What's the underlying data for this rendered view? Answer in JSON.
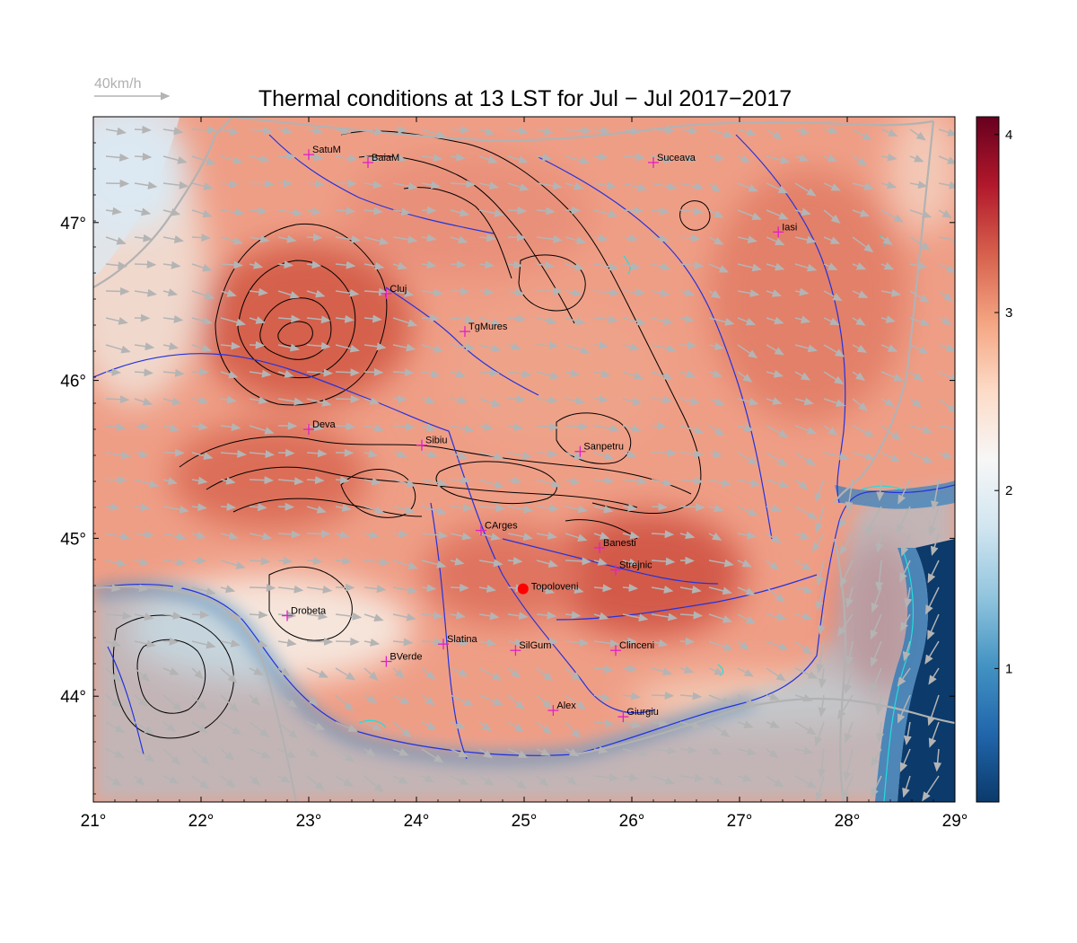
{
  "title": "Thermal conditions at 13 LST for Jul − Jul  2017−2017",
  "wind_scale": {
    "label": "40km/h"
  },
  "axes": {
    "lon_range": [
      21,
      29
    ],
    "lat_range": [
      43.33,
      47.67
    ],
    "lon_ticks": [
      {
        "value": 21,
        "label": "21°"
      },
      {
        "value": 22,
        "label": "22°"
      },
      {
        "value": 23,
        "label": "23°"
      },
      {
        "value": 24,
        "label": "24°"
      },
      {
        "value": 25,
        "label": "25°"
      },
      {
        "value": 26,
        "label": "26°"
      },
      {
        "value": 27,
        "label": "27°"
      },
      {
        "value": 28,
        "label": "28°"
      },
      {
        "value": 29,
        "label": "29°"
      }
    ],
    "lat_ticks": [
      {
        "value": 44,
        "label": "44°"
      },
      {
        "value": 45,
        "label": "45°"
      },
      {
        "value": 46,
        "label": "46°"
      },
      {
        "value": 47,
        "label": "47°"
      }
    ]
  },
  "colorbar": {
    "range": [
      0.25,
      4.1
    ],
    "ticks": [
      {
        "value": 1,
        "label": "1"
      },
      {
        "value": 2,
        "label": "2"
      },
      {
        "value": 3,
        "label": "3"
      },
      {
        "value": 4,
        "label": "4"
      }
    ],
    "colors": [
      "#0b3a6b",
      "#2166ac",
      "#4393c3",
      "#92c5de",
      "#d1e5f0",
      "#f7f7f7",
      "#fddbc7",
      "#f4a582",
      "#d6604d",
      "#b2182b",
      "#67001f"
    ]
  },
  "stations": [
    {
      "name": "SatuM",
      "lon": 23.0,
      "lat": 47.43
    },
    {
      "name": "BaiaM",
      "lon": 23.55,
      "lat": 47.38
    },
    {
      "name": "Suceava",
      "lon": 26.2,
      "lat": 47.38
    },
    {
      "name": "Iasi",
      "lon": 27.36,
      "lat": 46.94
    },
    {
      "name": "Cluj",
      "lon": 23.72,
      "lat": 46.55
    },
    {
      "name": "TgMures",
      "lon": 24.45,
      "lat": 46.31
    },
    {
      "name": "Deva",
      "lon": 23.0,
      "lat": 45.69
    },
    {
      "name": "Sibiu",
      "lon": 24.05,
      "lat": 45.59
    },
    {
      "name": "Sanpetru",
      "lon": 25.52,
      "lat": 45.55
    },
    {
      "name": "CArges",
      "lon": 24.6,
      "lat": 45.05
    },
    {
      "name": "Banesti",
      "lon": 25.7,
      "lat": 44.94
    },
    {
      "name": "Strejnic",
      "lon": 25.85,
      "lat": 44.8
    },
    {
      "name": "Drobeta",
      "lon": 22.8,
      "lat": 44.51
    },
    {
      "name": "Slatina",
      "lon": 24.25,
      "lat": 44.33
    },
    {
      "name": "SilGum",
      "lon": 24.92,
      "lat": 44.29
    },
    {
      "name": "Clinceni",
      "lon": 25.85,
      "lat": 44.29
    },
    {
      "name": "BVerde",
      "lon": 23.72,
      "lat": 44.22
    },
    {
      "name": "Alex",
      "lon": 25.27,
      "lat": 43.91
    },
    {
      "name": "Giurgiu",
      "lon": 25.92,
      "lat": 43.87
    }
  ],
  "highlight_site": {
    "name": "Topoloveni",
    "lon": 24.99,
    "lat": 44.68,
    "color": "#ff0000"
  }
}
